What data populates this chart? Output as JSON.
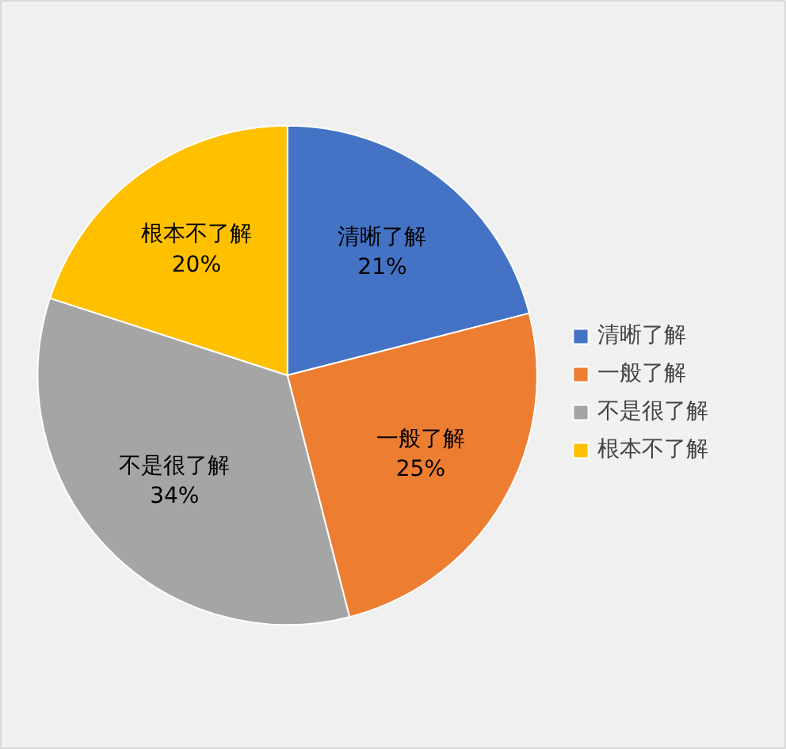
{
  "chart_data": {
    "type": "pie",
    "categories": [
      "清晰了解",
      "一般了解",
      "不是很了解",
      "根本不了解"
    ],
    "values": [
      21,
      25,
      34,
      20
    ],
    "colors": [
      "#4472c4",
      "#ed7d31",
      "#a5a5a5",
      "#ffc000"
    ],
    "value_labels": [
      "21%",
      "25%",
      "34%",
      "20%"
    ],
    "legend": "right"
  }
}
